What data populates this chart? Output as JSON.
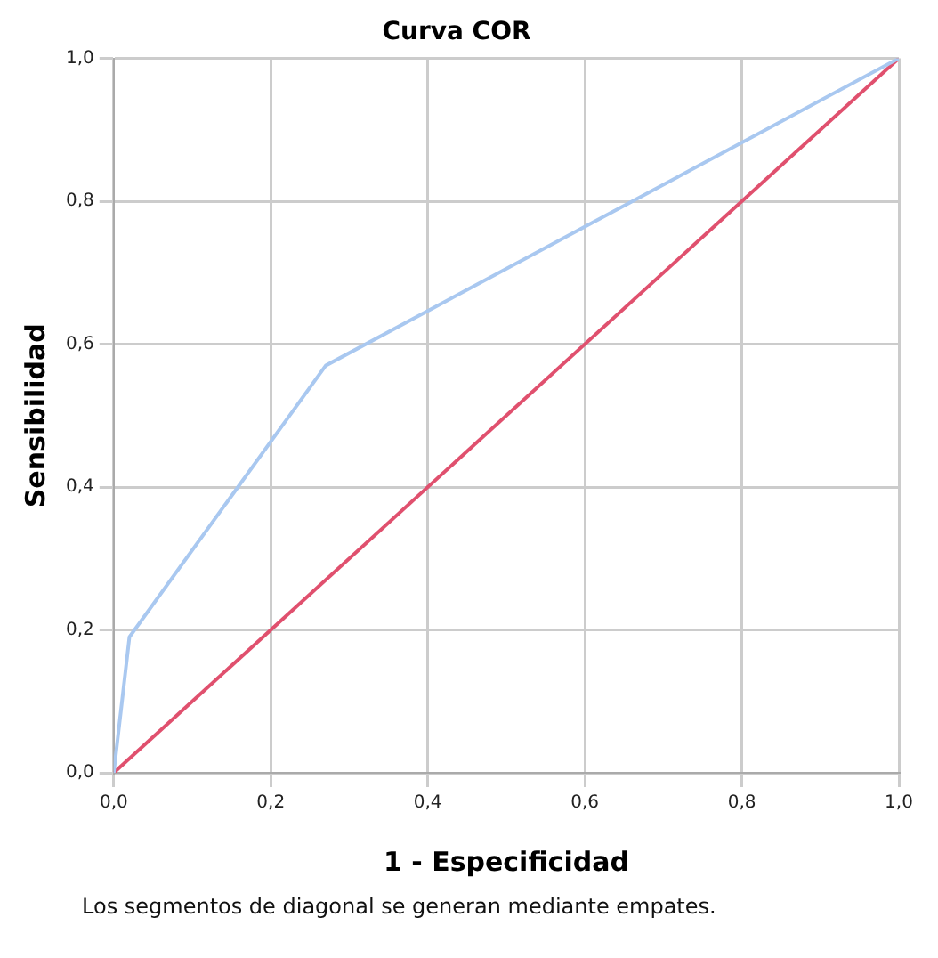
{
  "chart_data": {
    "type": "line",
    "title": "Curva COR",
    "xlabel": "1 - Especificidad",
    "ylabel": "Sensibilidad",
    "series": [
      {
        "color": "#a9c8f0",
        "x": [
          0,
          0.02,
          0.27,
          1
        ],
        "values": [
          0,
          0.19,
          0.57,
          1
        ]
      },
      {
        "color": "#e0506e",
        "x": [
          0,
          1
        ],
        "values": [
          0,
          1
        ]
      }
    ],
    "xlim": [
      0,
      1
    ],
    "ylim": [
      0,
      1
    ],
    "xticks": [
      {
        "value": 0,
        "label": "0,0"
      },
      {
        "value": 0.2,
        "label": "0,2"
      },
      {
        "value": 0.4,
        "label": "0,4"
      },
      {
        "value": 0.6,
        "label": "0,6"
      },
      {
        "value": 0.8,
        "label": "0,8"
      },
      {
        "value": 1,
        "label": "1,0"
      }
    ],
    "yticks": [
      {
        "value": 0,
        "label": "0,0"
      },
      {
        "value": 0.2,
        "label": "0,2"
      },
      {
        "value": 0.4,
        "label": "0,4"
      },
      {
        "value": 0.6,
        "label": "0,6"
      },
      {
        "value": 0.8,
        "label": "0,8"
      },
      {
        "value": 1,
        "label": "1,0"
      }
    ],
    "grid": true,
    "legend": false,
    "marker": "none",
    "line_style": "solid",
    "annotations": [
      "Los segmentos de diagonal se generan mediante empates."
    ]
  }
}
